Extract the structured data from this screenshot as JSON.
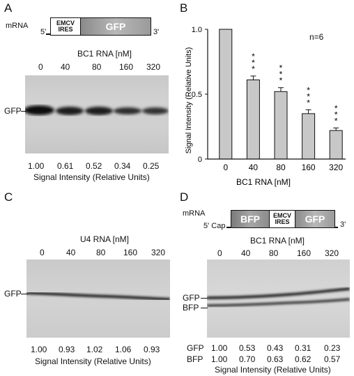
{
  "panelA": {
    "letter": "A",
    "mrna_label": "mRNA",
    "five_prime": "5'",
    "three_prime": "3'",
    "ires_line1": "EMCV",
    "ires_line2": "IRES",
    "gfp_box": "GFP",
    "title": "BC1 RNA [nM]",
    "lanes": [
      "0",
      "40",
      "80",
      "160",
      "320"
    ],
    "band_label": "GFP",
    "values": [
      "1.00",
      "0.61",
      "0.52",
      "0.34",
      "0.25"
    ],
    "caption": "Signal Intensity (Relative Units)"
  },
  "panelB": {
    "letter": "B",
    "n_label": "n=6",
    "stars": "***"
  },
  "chart_data": {
    "type": "bar",
    "categories": [
      "0",
      "40",
      "80",
      "160",
      "320"
    ],
    "values": [
      1.0,
      0.61,
      0.52,
      0.35,
      0.22
    ],
    "errors": [
      0.0,
      0.03,
      0.03,
      0.03,
      0.02
    ],
    "significance": [
      "",
      "***",
      "***",
      "***",
      "***"
    ],
    "xlabel": "BC1 RNA [nM]",
    "ylabel": "Signal Intensity (Relative Units)",
    "ylim": [
      0,
      1.0
    ],
    "yticks": [
      "0",
      "0.5",
      "1.0"
    ],
    "bar_color": "#c8c8c8"
  },
  "panelC": {
    "letter": "C",
    "title": "U4 RNA [nM]",
    "lanes": [
      "0",
      "40",
      "80",
      "160",
      "320"
    ],
    "band_label": "GFP",
    "values": [
      "1.00",
      "0.93",
      "1.02",
      "1.06",
      "0.93"
    ],
    "caption": "Signal Intensity (Relative Units)"
  },
  "panelD": {
    "letter": "D",
    "mrna_label": "mRNA",
    "cap_label": "5' Cap",
    "three_prime": "3'",
    "bfp_box": "BFP",
    "ires_line1": "EMCV",
    "ires_line2": "IRES",
    "gfp_box": "GFP",
    "title": "BC1 RNA [nM]",
    "lanes": [
      "0",
      "40",
      "80",
      "160",
      "320"
    ],
    "band_label_gfp": "GFP",
    "band_label_bfp": "BFP",
    "row_gfp_label": "GFP",
    "row_bfp_label": "BFP",
    "values_gfp": [
      "1.00",
      "0.53",
      "0.43",
      "0.31",
      "0.23"
    ],
    "values_bfp": [
      "1.00",
      "0.70",
      "0.63",
      "0.62",
      "0.57"
    ],
    "caption": "Signal Intensity (Relative Units)"
  }
}
